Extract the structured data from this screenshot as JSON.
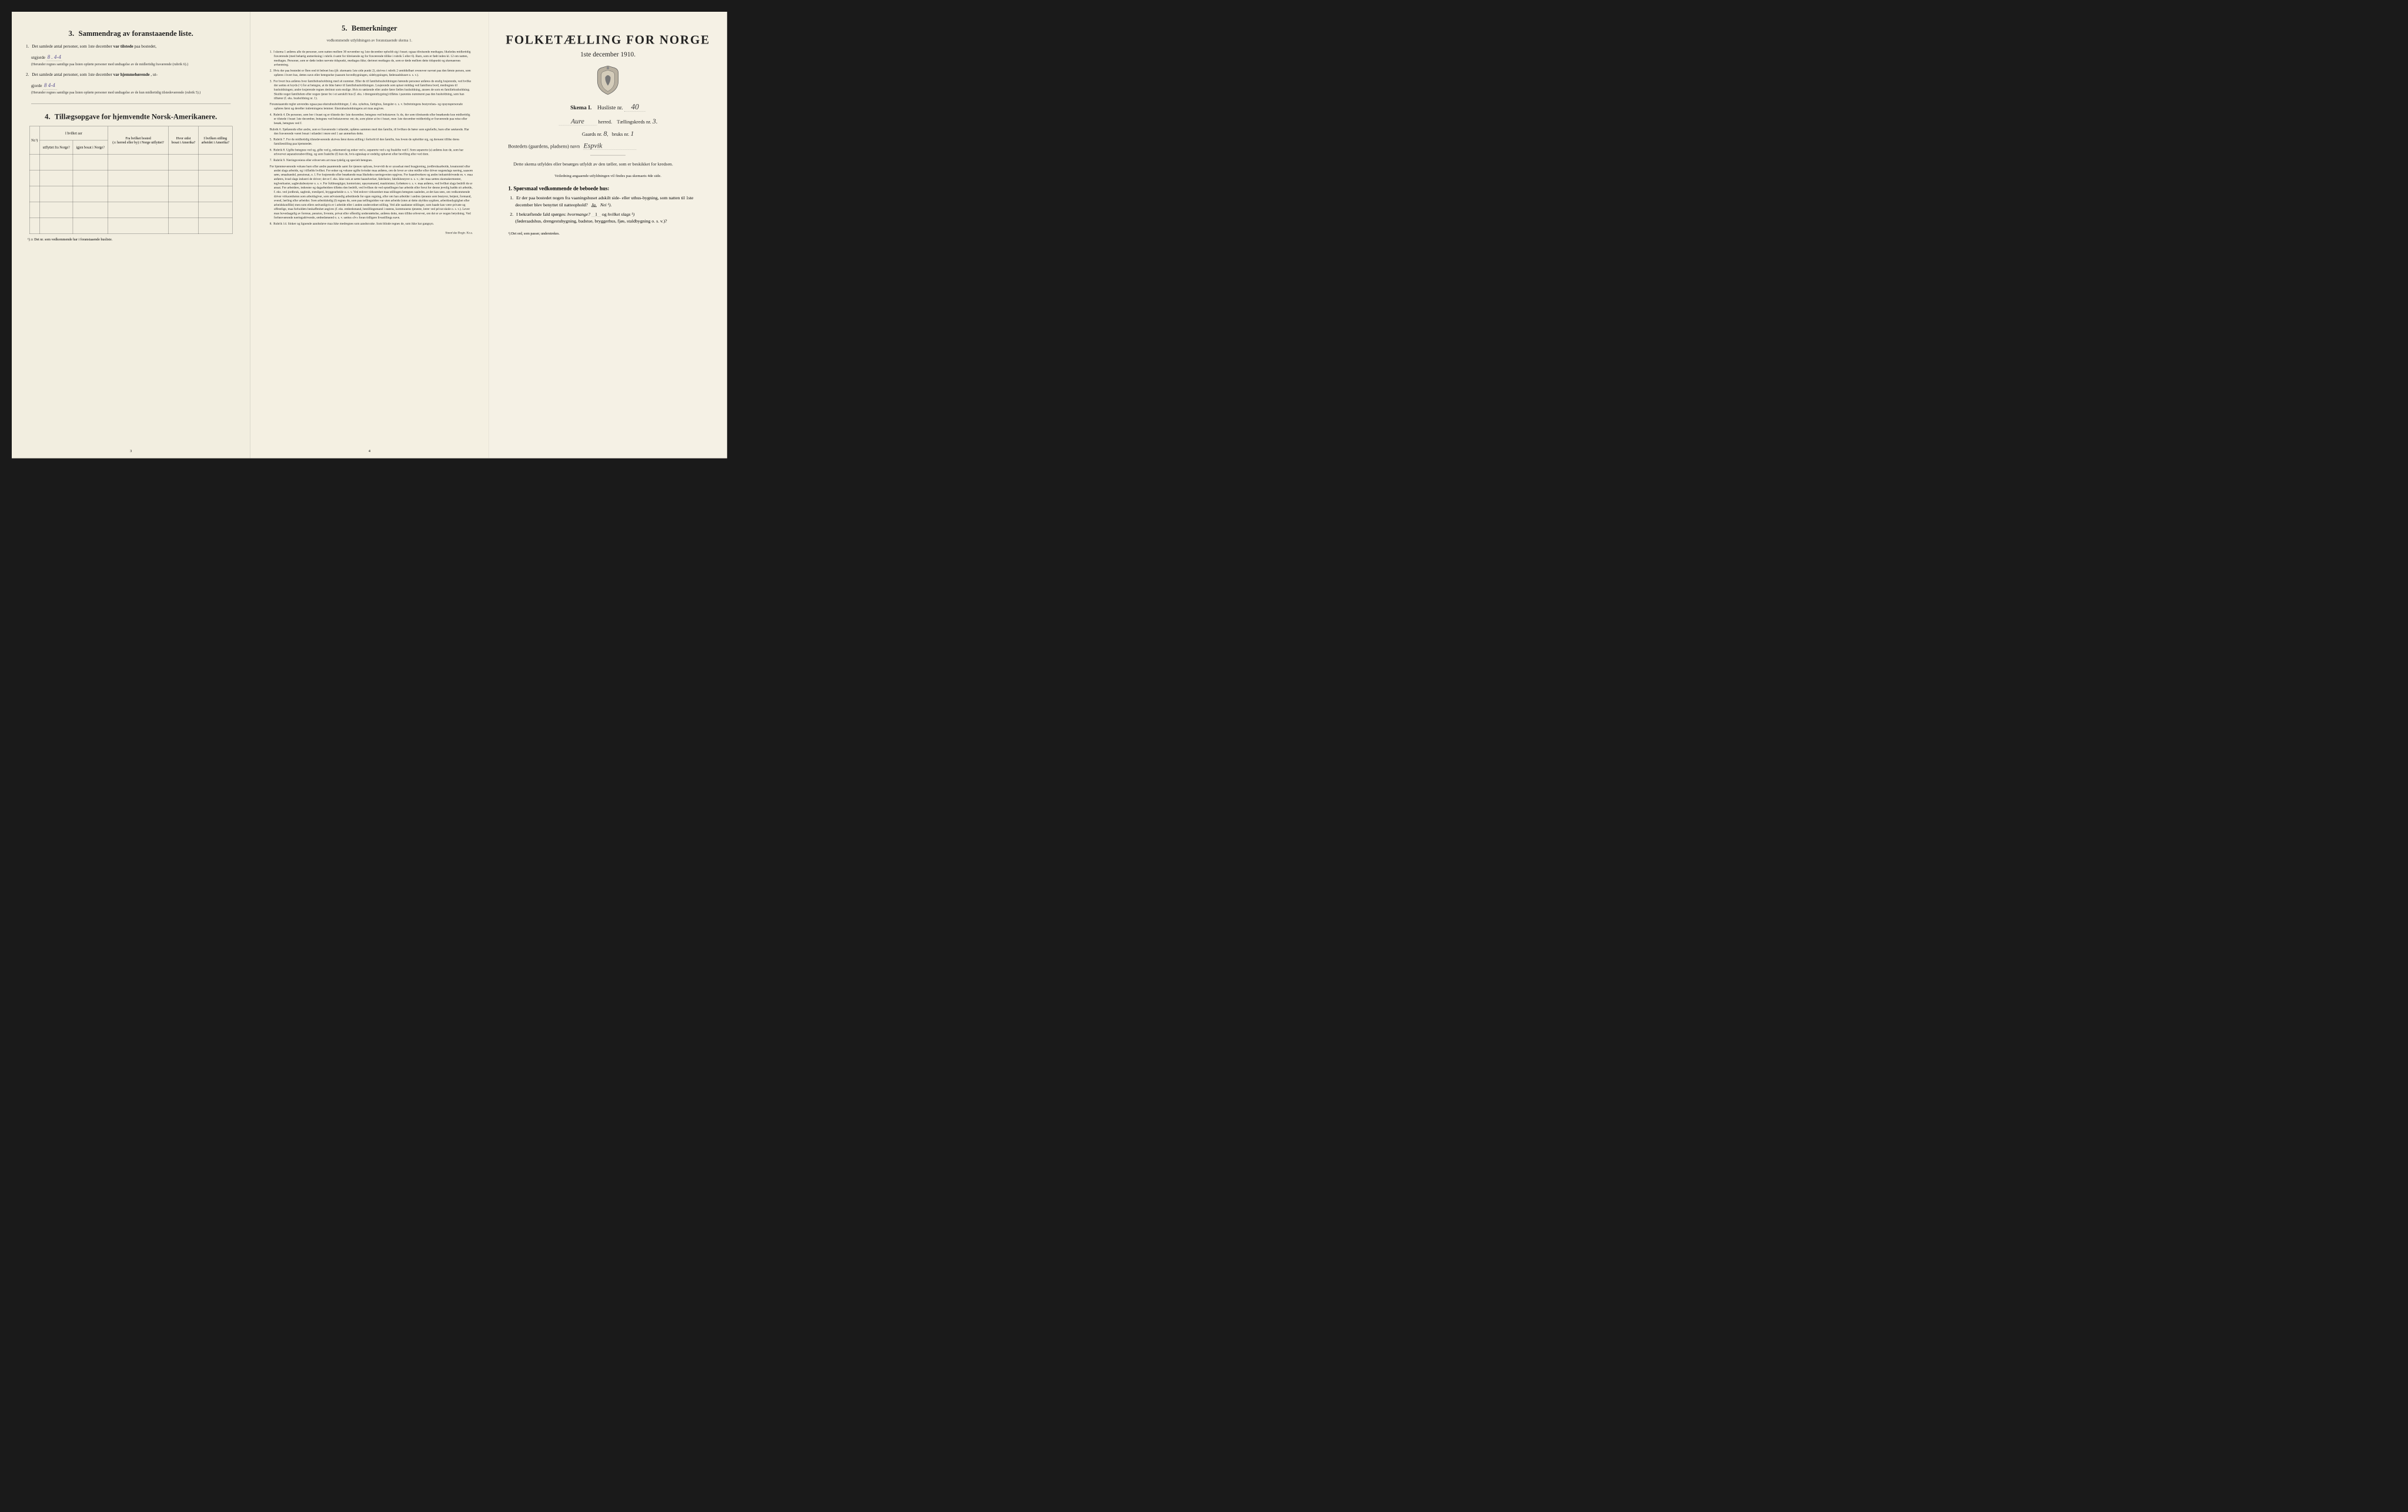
{
  "colors": {
    "paper": "#f4f0e4",
    "ink": "#222222",
    "handwriting": "#5a5090",
    "background": "#1a1a1a"
  },
  "left": {
    "section3_num": "3.",
    "section3_title": "Sammendrag av foranstaaende liste.",
    "p1_num": "1.",
    "p1_a": "Det samlede antal personer, som 1ste december ",
    "p1_b": "var tilstede",
    "p1_c": " paa bostedet,",
    "p1_line2": "utgjorde",
    "p1_val": "8 . 4-4",
    "p1_paren": "(Herunder regnes samtlige paa listen opførte personer med undtagelse av de midlertidig fraværende (rubrik 6).)",
    "p2_num": "2.",
    "p2_a": "Det samlede antal personer, som 1ste december ",
    "p2_b": "var hjemmehørende",
    "p2_c": ", ut-",
    "p2_line2": "gjorde",
    "p2_val": "8    4-4",
    "p2_paren": "(Herunder regnes samtlige paa listen opførte personer med undtagelse av de kun midlertidig tilstedeværende (rubrik 5).)",
    "section4_num": "4.",
    "section4_title": "Tillægsopgave for hjemvendte Norsk-Amerikanere.",
    "t4": {
      "col1": "Nr.¹)",
      "col2a": "I hvilket aar",
      "col2b": "utflyttet fra Norge?",
      "col2c": "igjen bosat i Norge?",
      "col3a": "Fra hvilket bosted",
      "col3b": "(ɔ: herred eller by) i Norge utflyttet?",
      "col4a": "Hvor sidst",
      "col4b": "bosat i Amerika?",
      "col5a": "I hvilken stilling",
      "col5b": "arbeidet i Amerika?"
    },
    "footnote": "¹) ɔ: Det nr. som vedkommende har i foranstaaende husliste.",
    "pagenum": "3"
  },
  "mid": {
    "section5_num": "5.",
    "section5_title": "Bemerkninger",
    "section5_sub": "vedkommende utfyldningen av foranstaaende skema 1.",
    "items": [
      {
        "n": "1.",
        "t": "I skema 1 anføres alle de personer, som natten mellem 30 november og 1ste december opholdt sig i huset; ogsaa tilreisende medtages; likeledes midlertidig fraværende (med behørig anmerkning i rubrik 4 samt for tilreisende og for fraværende tillike i rubrik 5 eller 6). Barn, som er født inden kl. 12 om natten, medtages. Personer, som er døde inden nævnte tidspunkt, medtages ikke; derimot medtages de, som er døde mellem dette tidspunkt og skemaernes avhentning."
      },
      {
        "n": "2.",
        "t": "Hvis der paa bostedet er flere end ét beboet hus (jfr. skemaets 1ste side punkt 2), skrives i rubrik 2 umiddelbart ovenover navnet paa den første person, som opføres i hvert hus, dettes navn eller betegnelse (saasom hovedbygningen, sidebygningen, føderaadshuset o. s. v.)."
      },
      {
        "n": "3.",
        "t": "For hvert hus anføres hver familiehusholdning med sit nummer. Efter de til familiehusholdningen hørende personer anføres de enslig losjerende, ved hvilke der sættes et kryds (×) for at betegne, at de ikke hører til familiehusholdningen. Losjerende som spiser middag ved familiens bord, medregnes til husholdningen; andre losjerende regnes derimot som enslige. Hvis to søskende eller andre fører fælles husholdning, ansees de som en familiehusholdning. Skulde noget familielem eller nogen tjener bo i et særskilt hus (f. eks. i drengestubygning) tilføies i parentes nummeret paa den husholdning, som han tilhører (f. eks. husholdning nr. 1).",
        "s": "Foranstaaende regler anvendes ogsaa paa ekstrahusholdninger, f. eks. sykehus, fattighus, fængsler o. s. v. Indretningens bestyrelses- og opsynspersonale opføres først og derefter indretningens lemmer. Ekstrahusholdningens art maa angives."
      },
      {
        "n": "4.",
        "t": "Rubrik 4. De personer, som bor i huset og er tilstede der 1ste december, betegnes ved bokstaven: b; de, der som tilreisende eller besøkende kun midlertidig er tilstede i huset 1ste december, betegnes ved bokstaverne: mt; de, som pleier at bo i huset, men 1ste december midlertidig er fraværende paa reise eller besøk, betegnes ved f.",
        "s": "Rubrik 6. Sjøfarende eller andre, som er fraværende i utlandet, opføres sammen med den familie, til hvilken de hører som egtefælle, barn eller søskende. Har den fraværende været bosat i utlandet i mere end 1 aar anmerkes dette."
      },
      {
        "n": "5.",
        "t": "Rubrik 7. For de midlertidig tilstedeværende skrives først deres stilling i forhold til den familie, hos hvem de opholder sig, og dernæst tillike deres familiestilling paa hjemstedet."
      },
      {
        "n": "6.",
        "t": "Rubrik 8. Ugifte betegnes ved ug, gifte ved g, enkemænd og enker ved e, separerte ved s og fraskilte ved f. Som separerte (s) anføres kun de, som har erhvervet separationsbevilling, og som fraskilte (f) kun de, hvis egteskap er endelig ophævet efter bevilling eller ved dom."
      },
      {
        "n": "7.",
        "t": "Rubrik 9. Næringsveiens eller erhvervets art maa tydelig og specielt betegnes.",
        "s": "For hjemmeværende voksne barn eller andre paarørende samt for tjenere oplyses, hvorvidt de er sysselsat med husgjerning, jordbruksarbeide, kreaturstel eller andet slags arbeide, og i tilfælde hvilket. For enker og voksne ugifte kvinder maa anføres, om de lever av sine midler eller driver nogenslags næring, saasom søm, smaahandel, pensionat, o. l. For losjerende eller besøkende maa likeledes næringsveien opgives. For haandverkere og andre industridrivende m. v. maa anføres, hvad slags industri de driver; det er f. eks. ikke nok at sætte haandverker, fabrikeier, fabrikbestyrer o. s. v.; der maa sættes skomakermester, teglverkseier, sagbruksbestyrer o. s. v. For fuldmægtiger, kontorister, opsynsmænd, maskinister, fyrbøtere o. s. v. maa anføres, ved hvilket slags bedrift de er ansat. For arbeidere, inderster og dagarbeidere tilføies den bedrift, ved hvilken de ved optællingen har arbeide eller forut for denne jevnlig hadde sit arbeide, f. eks. ved jordbruk, sagbruk, træsliperi, bryggearbeide o. s. v. Ved enhver virksomhet maa stillingen betegnes saaledes, at det kan sees, om vedkommende driver virksomheten som arbeidsgiver, som selvstændig arbeidende for egen regning, eller om han arbeider i andres tjeneste som bestyrer, betjent, formand, svend, lærling eller arbeider. Som arbeidsledig (l) regnes de, som paa tællingstiden var uten arbeide (uten at dette skyldes sygdom, arbeidsudygtighet eller arbeidskonflikt) men som ellers sedvanligvis er i arbeide eller i anden underordnet stilling. Ved alle saadanne stillinger, som baade kan være private og offentlige, maa forholdets beskaffenhet angives (f. eks. embedsmand, bestillingsmand i statens, kommunens tjeneste, lærer ved privat skole o. s. v.). Lever man hovedsagelig av formue, pension, livrente, privat eller offentlig understøttelse, anføres dette, men tillike erhvervet, om det er av nogen betydning. Ved forhenværende næringsdrivende, embedsmænd o. s. v. sættes «fv» foran tidligere livsstillings navn."
      },
      {
        "n": "8.",
        "t": "Rubrik 14. Sinker og lignende aandssløve maa ikke medregnes som aandssvake. Som blinde regnes de, som ikke har gangsyn."
      }
    ],
    "pagenum": "4",
    "imprint": "Steen'ske Bogtr. Kr.a."
  },
  "right": {
    "masthead": "FOLKETÆLLING FOR NORGE",
    "date": "1ste december 1910.",
    "skema_a": "Skema I.",
    "skema_b": "Husliste nr.",
    "husliste_nr": "40",
    "herred_name": "Aure",
    "herred_suffix": "herred.",
    "kreds_label": "Tællingskreds nr.",
    "kreds_nr": "3.",
    "gaards_label": "Gaards nr.",
    "gaards_nr": "8",
    "bruks_label": "bruks nr.",
    "bruks_nr": "1",
    "bosted_label": "Bostedets (gaardens, pladsens) navn",
    "bosted_name": "Espvik",
    "body1": "Dette skema utfyldes eller besørges utfyldt av den tæller, som er beskikket for kredsen.",
    "body1_sub": "Veiledning angaaende utfyldningen vil findes paa skemaets 4de side.",
    "q_lead_num": "1.",
    "q_lead": "Spørsmaal vedkommende de beboede hus:",
    "q1_n": "1.",
    "q1": "Er der paa bostedet nogen fra vaaningshuset adskilt side- eller uthus-bygning, som natten til 1ste december blev benyttet til natteophold?",
    "q1_ja": "Ja.",
    "q1_nei": "Nei ¹).",
    "q2_n": "2.",
    "q2_a": "I bekræftende fald spørges: ",
    "q2_b": "hvormange?",
    "q2_val": "1",
    "q2_c": "og ",
    "q2_d": "hvilket slags ¹)",
    "q2_e": "(føderaadshus, drengestubygning, badstue, bryggerhus, fjøs, staldbygning o. s. v.)?",
    "footnote": "¹) Det ord, som passer, understrekes."
  }
}
